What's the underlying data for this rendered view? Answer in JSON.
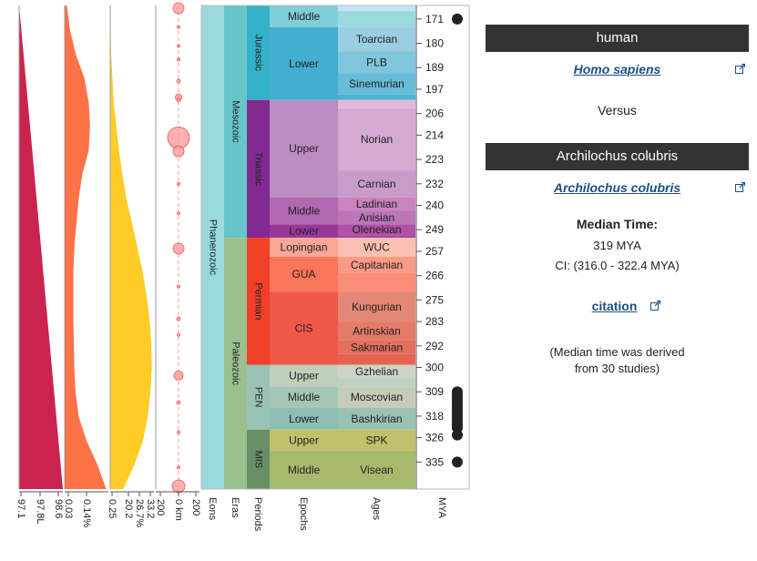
{
  "mya_ticks": [
    {
      "label": "171",
      "t": 171
    },
    {
      "label": "180",
      "t": 180
    },
    {
      "label": "189",
      "t": 189
    },
    {
      "label": "197",
      "t": 197
    },
    {
      "label": "206",
      "t": 206
    },
    {
      "label": "214",
      "t": 214
    },
    {
      "label": "223",
      "t": 223
    },
    {
      "label": "232",
      "t": 232
    },
    {
      "label": "240",
      "t": 240
    },
    {
      "label": "249",
      "t": 249
    },
    {
      "label": "257",
      "t": 257
    },
    {
      "label": "266",
      "t": 266
    },
    {
      "label": "275",
      "t": 275
    },
    {
      "label": "283",
      "t": 283
    },
    {
      "label": "292",
      "t": 292
    },
    {
      "label": "300",
      "t": 300
    },
    {
      "label": "309",
      "t": 309
    },
    {
      "label": "318",
      "t": 318
    },
    {
      "label": "326",
      "t": 326
    },
    {
      "label": "335",
      "t": 335
    }
  ],
  "eons": [
    {
      "name": "Phanerozoic",
      "start": 166,
      "end": 345,
      "color": "#9AD9DD"
    }
  ],
  "eras": [
    {
      "name": "Mesozoic",
      "start": 166,
      "end": 252,
      "color": "#67C5CA"
    },
    {
      "name": "Paleozoic",
      "start": 252,
      "end": 345,
      "color": "#99C08D"
    }
  ],
  "periods": [
    {
      "name": "Jurassic",
      "start": 166,
      "end": 201,
      "color": "#34B2C9"
    },
    {
      "name": "Triassic",
      "start": 201,
      "end": 252,
      "color": "#812B92"
    },
    {
      "name": "Permian",
      "start": 252,
      "end": 299,
      "color": "#F04028"
    },
    {
      "name": "PEN",
      "start": 299,
      "end": 323,
      "color": "#99C2B5"
    },
    {
      "name": "MIS",
      "start": 323,
      "end": 345,
      "color": "#678F66"
    }
  ],
  "epochs": [
    {
      "name": "Middle",
      "start": 166,
      "end": 174,
      "color": "#80CFD8"
    },
    {
      "name": "Lower",
      "start": 174,
      "end": 201,
      "color": "#42AED0"
    },
    {
      "name": "Upper",
      "start": 201,
      "end": 237,
      "color": "#BD8CC3"
    },
    {
      "name": "Middle",
      "start": 237,
      "end": 247,
      "color": "#B168B1"
    },
    {
      "name": "Lower",
      "start": 247,
      "end": 252,
      "color": "#983999"
    },
    {
      "name": "Lopingian",
      "start": 252,
      "end": 259,
      "color": "#FBA794"
    },
    {
      "name": "GUA",
      "start": 259,
      "end": 272,
      "color": "#FB745C"
    },
    {
      "name": "CIS",
      "start": 272,
      "end": 299,
      "color": "#EF5846"
    },
    {
      "name": "Upper",
      "start": 299,
      "end": 307,
      "color": "#BFD0BA"
    },
    {
      "name": "Middle",
      "start": 307,
      "end": 315,
      "color": "#A6C7B7"
    },
    {
      "name": "Lower",
      "start": 315,
      "end": 323,
      "color": "#8CBEB4"
    },
    {
      "name": "Upper",
      "start": 323,
      "end": 331,
      "color": "#BFC26B"
    },
    {
      "name": "Middle",
      "start": 331,
      "end": 345,
      "color": "#A6B96C"
    }
  ],
  "ages": [
    {
      "name": "",
      "start": 166,
      "end": 168,
      "color": "#BFE7F1"
    },
    {
      "name": "",
      "start": 168,
      "end": 174,
      "color": "#9AD9DD"
    },
    {
      "name": "Toarcian",
      "start": 174,
      "end": 183,
      "color": "#99CEE3"
    },
    {
      "name": "PLB",
      "start": 183,
      "end": 191,
      "color": "#80C5DD"
    },
    {
      "name": "Sinemurian",
      "start": 191,
      "end": 199,
      "color": "#67BCD8"
    },
    {
      "name": "",
      "start": 199,
      "end": 201,
      "color": "#4EB3D3"
    },
    {
      "name": "",
      "start": 201,
      "end": 204,
      "color": "#E3B9DB"
    },
    {
      "name": "Norian",
      "start": 204,
      "end": 227,
      "color": "#D6AAD3"
    },
    {
      "name": "Carnian",
      "start": 227,
      "end": 237,
      "color": "#C99BCB"
    },
    {
      "name": "Ladinian",
      "start": 237,
      "end": 242,
      "color": "#C983BF"
    },
    {
      "name": "Anisian",
      "start": 242,
      "end": 247,
      "color": "#BC75B7"
    },
    {
      "name": "Olenekian",
      "start": 247,
      "end": 251,
      "color": "#B051A5"
    },
    {
      "name": "",
      "start": 251,
      "end": 252,
      "color": "#A4469F"
    },
    {
      "name": "WUC",
      "start": 252,
      "end": 259,
      "color": "#FCC0B2"
    },
    {
      "name": "Capitanian",
      "start": 259,
      "end": 265,
      "color": "#FB9A85"
    },
    {
      "name": "",
      "start": 265,
      "end": 272,
      "color": "#FB8D76"
    },
    {
      "name": "Kungurian",
      "start": 272,
      "end": 283,
      "color": "#E38776"
    },
    {
      "name": "Artinskian",
      "start": 283,
      "end": 290,
      "color": "#E37B68"
    },
    {
      "name": "Sakmarian",
      "start": 290,
      "end": 295,
      "color": "#E36F5C"
    },
    {
      "name": "",
      "start": 295,
      "end": 299,
      "color": "#E36350"
    },
    {
      "name": "Gzhelian",
      "start": 299,
      "end": 304,
      "color": "#CCD4C7"
    },
    {
      "name": "",
      "start": 304,
      "end": 307,
      "color": "#BFD0C5"
    },
    {
      "name": "Moscovian",
      "start": 307,
      "end": 315,
      "color": "#C7CBB9"
    },
    {
      "name": "Bashkirian",
      "start": 315,
      "end": 323,
      "color": "#99C2B5"
    },
    {
      "name": "SPK",
      "start": 323,
      "end": 331,
      "color": "#BFC26B"
    },
    {
      "name": "Visean",
      "start": 331,
      "end": 345,
      "color": "#A6B96C"
    }
  ],
  "column_labels": {
    "eons": "Eons",
    "eras": "Eras",
    "periods": "Periods",
    "epochs": "Epochs",
    "ages": "Ages",
    "mya": "MYA"
  },
  "bottom_axes": [
    {
      "labels": [
        "97.1",
        "97.8L",
        "98.6"
      ]
    },
    {
      "labels": [
        "0.03",
        "0.14%"
      ]
    },
    {
      "labels": [
        "0.25",
        "20.2",
        "26.7%",
        "33.2"
      ]
    },
    {
      "labels": [
        "200",
        "0 km",
        "200"
      ]
    }
  ],
  "colors": {
    "crimson_area": "#CB2350",
    "orange_area": "#FD7247",
    "yellow_area": "#FECB27",
    "impact_circle": "#FC9C9F",
    "timeline_dots": "#222222",
    "header_bg": "#333333",
    "link": "#1d4f86"
  },
  "panels": {
    "crimson_fraction": [
      0,
      0.05,
      0.1,
      0.15,
      0.2,
      0.25,
      0.3,
      0.35,
      0.4,
      0.45,
      0.5,
      0.55,
      0.6,
      0.65,
      0.7,
      0.75,
      0.8,
      0.85,
      0.9,
      0.95,
      1.0
    ],
    "orange_fraction": [
      0.05,
      0.12,
      0.25,
      0.45,
      0.55,
      0.58,
      0.55,
      0.4,
      0.32,
      0.27,
      0.22,
      0.2,
      0.2,
      0.2,
      0.21,
      0.22,
      0.25,
      0.32,
      0.5,
      0.75,
      0.95
    ],
    "yellow_fraction": [
      0,
      0.01,
      0.02,
      0.05,
      0.08,
      0.14,
      0.2,
      0.28,
      0.37,
      0.5,
      0.62,
      0.74,
      0.83,
      0.9,
      0.94,
      0.95,
      0.92,
      0.86,
      0.75,
      0.55,
      0.3
    ],
    "impact_sizes": [
      {
        "t": 167,
        "r": 6
      },
      {
        "t": 174,
        "r": 1.5
      },
      {
        "t": 181,
        "r": 1.5
      },
      {
        "t": 186,
        "r": 1.5
      },
      {
        "t": 194,
        "r": 2
      },
      {
        "t": 200,
        "r": 3.5
      },
      {
        "t": 201,
        "r": 2
      },
      {
        "t": 215,
        "r": 12
      },
      {
        "t": 220,
        "r": 6
      },
      {
        "t": 232,
        "r": 1.5
      },
      {
        "t": 243,
        "r": 1.5
      },
      {
        "t": 256,
        "r": 6
      },
      {
        "t": 270,
        "r": 1.5
      },
      {
        "t": 282,
        "r": 2
      },
      {
        "t": 288,
        "r": 1.5
      },
      {
        "t": 303,
        "r": 5
      },
      {
        "t": 313,
        "r": 2
      },
      {
        "t": 324,
        "r": 1.5
      },
      {
        "t": 337,
        "r": 1.5
      },
      {
        "t": 344,
        "r": 7
      }
    ]
  },
  "timeline_dots": [
    171,
    309,
    310.3,
    311.5,
    312.7,
    313.9,
    315.1,
    316.3,
    317.5,
    318.7,
    319.9,
    321.1,
    322.3,
    325,
    335
  ],
  "taxa": {
    "taxon_a": {
      "header": "human",
      "link_text": "Homo sapiens"
    },
    "versus": "Versus",
    "taxon_b": {
      "header": "Archilochus colubris",
      "link_text": "Archilochus colubris"
    }
  },
  "result": {
    "median_label": "Median Time:",
    "median_value": "319 MYA",
    "ci": "CI: (316.0 - 322.4 MYA)",
    "citation": "citation",
    "note_line1": "(Median time was derived",
    "note_line2": "from 30 studies)"
  }
}
